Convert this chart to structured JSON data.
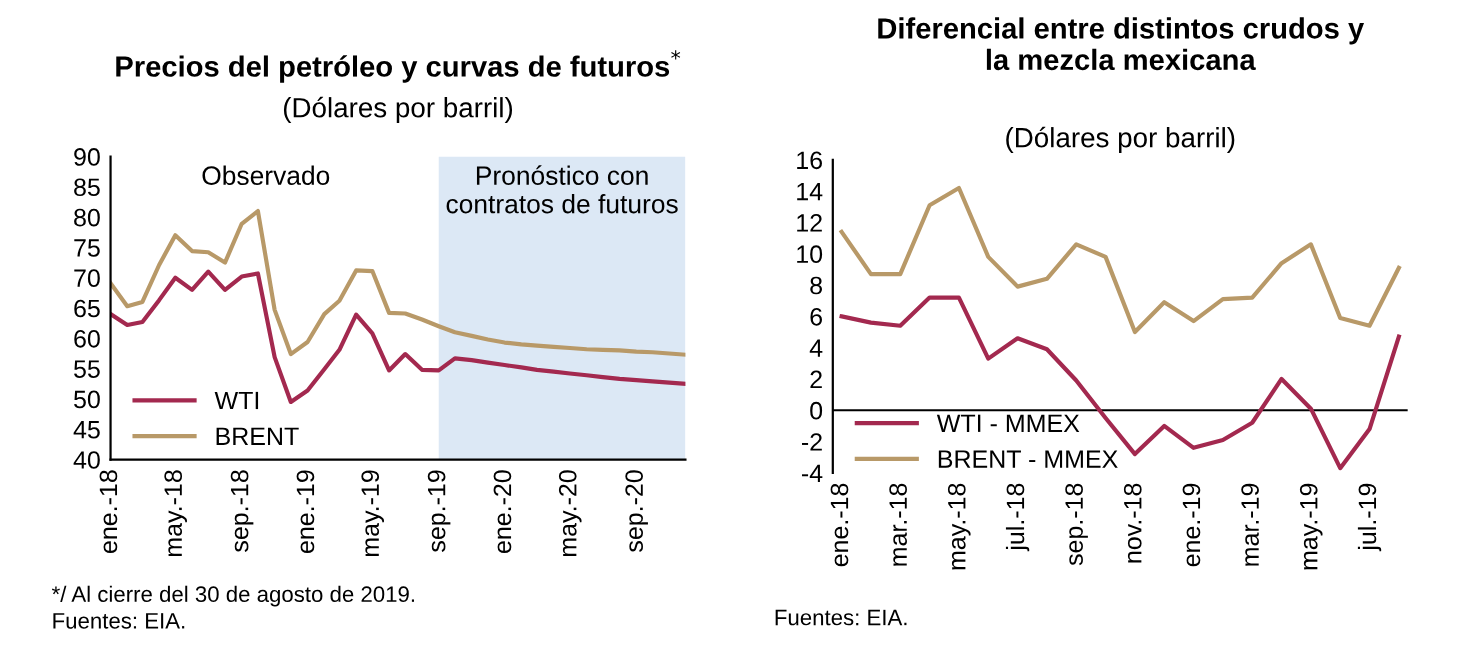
{
  "chart_data": [
    {
      "type": "line",
      "title": "Precios del petróleo y curvas de futuros$^{*}$",
      "subtitle": "(Dólares por barril)",
      "x": [
        "2018-01",
        "2018-02",
        "2018-03",
        "2018-04",
        "2018-05",
        "2018-06",
        "2018-07",
        "2018-08",
        "2018-09",
        "2018-10",
        "2018-11",
        "2018-12",
        "2019-01",
        "2019-02",
        "2019-03",
        "2019-04",
        "2019-05",
        "2019-06",
        "2019-07",
        "2019-08",
        "2019-09",
        "2019-10",
        "2019-11",
        "2019-12",
        "2020-01",
        "2020-02",
        "2020-03",
        "2020-04",
        "2020-05",
        "2020-06",
        "2020-07",
        "2020-08",
        "2020-09",
        "2020-10",
        "2020-11",
        "2020-12"
      ],
      "xlim": [
        "2018-01",
        "2020-12"
      ],
      "xticks": [
        {
          "value": "2018-01",
          "label": "ene.-18"
        },
        {
          "value": "2018-05",
          "label": "may.-18"
        },
        {
          "value": "2018-09",
          "label": "sep.-18"
        },
        {
          "value": "2019-01",
          "label": "ene.-19"
        },
        {
          "value": "2019-05",
          "label": "may.-19"
        },
        {
          "value": "2019-09",
          "label": "sep.-19"
        },
        {
          "value": "2020-01",
          "label": "ene.-20"
        },
        {
          "value": "2020-05",
          "label": "may.-20"
        },
        {
          "value": "2020-09",
          "label": "sep.-20"
        }
      ],
      "series": [
        {
          "name": "WTI",
          "color": "#a3294f",
          "values": [
            64,
            62.2,
            62.7,
            66.3,
            70,
            68,
            71,
            68,
            70.2,
            70.7,
            56.9,
            49.5,
            51.4,
            54.9,
            58.1,
            63.9,
            60.8,
            54.7,
            57.4,
            54.8,
            54.7,
            56.7,
            56.4,
            56.0,
            55.6,
            55.2,
            54.8,
            54.5,
            54.2,
            53.9,
            53.6,
            53.3,
            53.1,
            52.9,
            52.7,
            52.5
          ]
        },
        {
          "name": "BRENT",
          "color": "#b89968",
          "values": [
            69.1,
            65.3,
            66,
            72.1,
            77,
            74.4,
            74.2,
            72.5,
            78.9,
            81,
            64.7,
            57.4,
            59.4,
            64,
            66.2,
            71.2,
            71.1,
            64.2,
            64.1,
            63.1,
            62,
            61,
            60.4,
            59.8,
            59.3,
            59,
            58.8,
            58.6,
            58.4,
            58.2,
            58.1,
            58,
            57.8,
            57.7,
            57.5,
            57.3
          ]
        }
      ],
      "ylim": [
        40,
        90
      ],
      "yticks": [
        40,
        45,
        50,
        55,
        60,
        65,
        70,
        75,
        80,
        85,
        90
      ],
      "bands": [
        {
          "axis": "x",
          "from": "2019-09",
          "to": "2020-12",
          "label": "Pronóstico con\ncontratos de futuros",
          "color": "#dce8f5"
        }
      ],
      "annotations": [
        "Observado",
        "*/ Al cierre del 30 de agosto de 2019.",
        "Fuentes: EIA."
      ],
      "legend": "bottom left",
      "grid": false
    },
    {
      "type": "line",
      "title": "Diferencial entre distintos crudos y\nla mezcla mexicana",
      "subtitle": "(Dólares por barril)",
      "categories": [
        "ene.-18",
        null,
        "mar.-18",
        null,
        "may.-18",
        null,
        "jul.-18",
        null,
        "sep.-18",
        null,
        "nov.-18",
        null,
        "ene.-19",
        null,
        "mar.-19",
        null,
        "may.-19",
        null,
        "jul.-19",
        null
      ],
      "series": [
        {
          "name": "WTI - MMEX",
          "color": "#a3294f",
          "values": [
            6.0,
            5.6,
            5.4,
            7.2,
            7.2,
            3.3,
            4.6,
            3.9,
            1.9,
            -0.5,
            -2.8,
            -1.0,
            -2.4,
            -1.9,
            -0.8,
            2.0,
            0.1,
            -3.7,
            -1.2,
            4.7
          ]
        },
        {
          "name": "BRENT - MMEX",
          "color": "#b89968",
          "values": [
            11.4,
            8.7,
            8.7,
            13.1,
            14.2,
            9.8,
            7.9,
            8.4,
            10.6,
            9.8,
            5.0,
            6.9,
            5.7,
            7.1,
            7.2,
            9.4,
            10.6,
            5.9,
            5.4,
            9.1
          ]
        }
      ],
      "ylim": [
        -4,
        16
      ],
      "yticks": [
        -4,
        -2,
        0,
        2,
        4,
        6,
        8,
        10,
        12,
        14,
        16
      ],
      "ref_lines": [
        {
          "axis": "y",
          "value": 0,
          "color": "#000000"
        }
      ],
      "annotations": [
        "Fuentes: EIA."
      ],
      "legend": "bottom left",
      "grid": false
    }
  ]
}
